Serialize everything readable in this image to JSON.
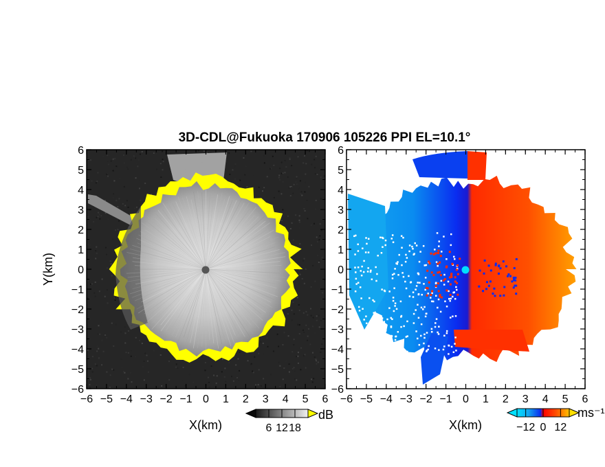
{
  "title": "3D-CDL@Fukuoka 170906 105226 PPI EL=10.1°",
  "colors": {
    "background": "#ffffff",
    "echo_dark": "#1e1e1e",
    "echo_light": "#d0d0d0",
    "edge_highlight": "#ffff00",
    "doppler_negative_strong": "#0a2cf0",
    "doppler_negative_weak": "#13a6f0",
    "doppler_positive_strong": "#ff2a00",
    "doppler_positive_weak": "#ffa000",
    "doppler_zero": "#00e0ff"
  },
  "chart_data": [
    {
      "type": "heatmap",
      "panel": "left",
      "quantity": "reflectivity",
      "xlabel": "X(km)",
      "ylabel": "Y(km)",
      "xlim": [
        -6,
        6
      ],
      "ylim": [
        -6,
        6
      ],
      "x_ticks": [
        "−6",
        "−5",
        "−4",
        "−3",
        "−2",
        "−1",
        "0",
        "1",
        "2",
        "3",
        "4",
        "5",
        "6"
      ],
      "y_ticks": [
        "6",
        "5",
        "4",
        "3",
        "2",
        "1",
        "0",
        "−1",
        "−2",
        "−3",
        "−4",
        "−5",
        "−6"
      ],
      "echo_radius_km": 4.2,
      "center_km": [
        0,
        0
      ],
      "colorbar": {
        "unit": "dB",
        "tick_labels": [
          "6",
          "12",
          "18"
        ],
        "tick_values": [
          6,
          12,
          18
        ],
        "range": [
          0,
          24
        ],
        "palette": "grayscale",
        "extend": "both"
      }
    },
    {
      "type": "heatmap",
      "panel": "right",
      "quantity": "doppler velocity",
      "xlabel": "X(km)",
      "ylabel": "",
      "xlim": [
        -6,
        6
      ],
      "ylim": [
        -6,
        6
      ],
      "x_ticks": [
        "−6",
        "−5",
        "−4",
        "−3",
        "−2",
        "−1",
        "0",
        "1",
        "2",
        "3",
        "4",
        "5",
        "6"
      ],
      "y_ticks": [
        "6",
        "5",
        "4",
        "3",
        "2",
        "1",
        "0",
        "−1",
        "−2",
        "−3",
        "−4",
        "−5",
        "−6"
      ],
      "velocity_sign": "negative west of x=0, positive east of x=0",
      "center_km": [
        0,
        0
      ],
      "colorbar": {
        "unit": "ms⁻¹",
        "tick_labels": [
          "−12",
          "0",
          "12"
        ],
        "tick_values": [
          -12,
          0,
          12
        ],
        "range": [
          -18,
          18
        ],
        "palette": "cyan-blue-red-orange",
        "extend": "both"
      }
    }
  ]
}
